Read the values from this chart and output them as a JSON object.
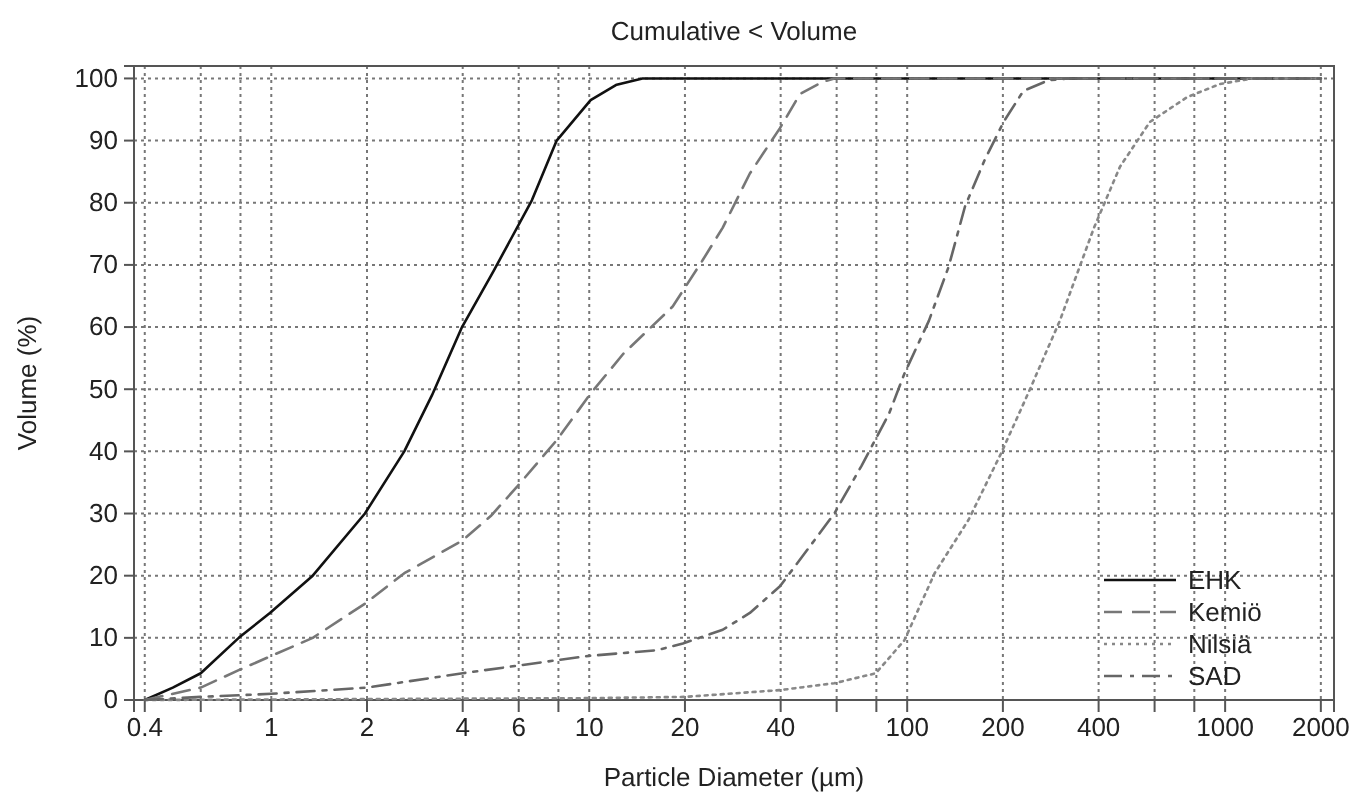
{
  "chart_data": {
    "type": "line",
    "title": "Cumulative < Volume",
    "xlabel": "Particle Diameter (µm)",
    "ylabel": "Volume (%)",
    "log": "x",
    "xlim": [
      0.37,
      2200
    ],
    "ylim": [
      0,
      102
    ],
    "xticks": [
      0.4,
      {
        "value": 0.6,
        "label": null
      },
      {
        "value": 0.8,
        "label": null
      },
      1,
      2,
      4,
      6,
      {
        "value": 8,
        "label": null
      },
      10,
      20,
      40,
      {
        "value": 60,
        "label": null
      },
      {
        "value": 80,
        "label": null
      },
      100,
      200,
      400,
      {
        "value": 600,
        "label": null
      },
      {
        "value": 800,
        "label": null
      },
      1000,
      2000
    ],
    "yticks": [
      0,
      10,
      20,
      30,
      40,
      50,
      60,
      70,
      80,
      90,
      100
    ],
    "grid": true,
    "legend": "bottom right",
    "marker": "none",
    "series": [
      {
        "name": "EHK",
        "color": "#111111",
        "line_style": "solid",
        "x": [
          0.4,
          0.49,
          0.6,
          0.79,
          0.99,
          1.35,
          1.97,
          2.62,
          3.2,
          3.98,
          5,
          6.6,
          7.9,
          10.1,
          12.2,
          14.7,
          2000
        ],
        "values": [
          0,
          2,
          4.3,
          10,
          14,
          20,
          30,
          40,
          49,
          60,
          69,
          80.4,
          90,
          96.5,
          99,
          100,
          100
        ]
      },
      {
        "name": "Kemiö",
        "color": "#777777",
        "line_style": "dashed",
        "x": [
          0.4,
          0.6,
          0.79,
          0.99,
          1.35,
          1.97,
          2.62,
          4,
          4.9,
          5.95,
          7.9,
          10.1,
          12.8,
          18.3,
          22.7,
          26.3,
          32,
          39.8,
          46,
          54,
          59,
          2000
        ],
        "values": [
          0,
          2,
          4.8,
          7,
          10,
          15.5,
          20.4,
          25.7,
          29.6,
          34.4,
          41.8,
          49.3,
          55.7,
          63.3,
          70.7,
          76,
          84.7,
          92,
          97.5,
          99.4,
          100,
          100
        ]
      },
      {
        "name": "Nilsiä",
        "color": "#888888",
        "line_style": "dotted",
        "x": [
          0.4,
          10,
          20,
          40,
          59,
          79.6,
          98,
          122,
          156,
          197,
          240,
          302,
          387,
          467,
          580,
          760,
          963,
          1220,
          2000
        ],
        "values": [
          0,
          0.3,
          0.5,
          1.6,
          2.7,
          4.3,
          9.6,
          20.4,
          29,
          39.6,
          49.3,
          61,
          76,
          85.8,
          93,
          97,
          99.1,
          100,
          100
        ]
      },
      {
        "name": "SAD",
        "color": "#666666",
        "line_style": "dashdot",
        "x": [
          0.4,
          0.6,
          1,
          2,
          4,
          7.9,
          10,
          16.3,
          19.7,
          26.3,
          32,
          39.8,
          49.4,
          59,
          71.7,
          87.6,
          98,
          117,
          135,
          152,
          175,
          201,
          232,
          278,
          320,
          2000
        ],
        "values": [
          0,
          0.5,
          1,
          2,
          4.3,
          6.4,
          7.1,
          8,
          9.1,
          11.3,
          14,
          18.3,
          24.7,
          30,
          37.6,
          46,
          52.5,
          61,
          69.7,
          79.4,
          86.8,
          93,
          98,
          99.7,
          100,
          100
        ]
      }
    ]
  }
}
